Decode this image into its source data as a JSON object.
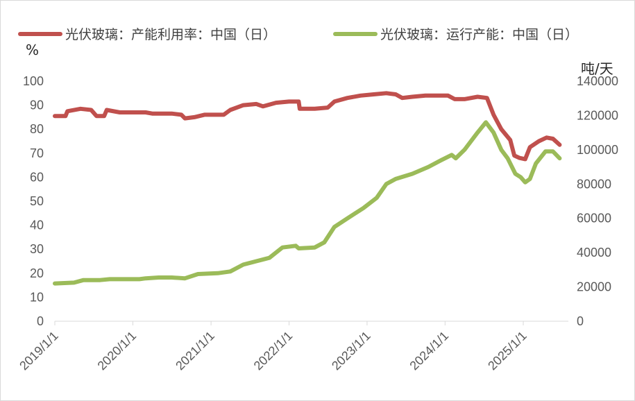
{
  "chart_data": {
    "type": "line",
    "x_ticks": [
      "2019/1/1",
      "2020/1/1",
      "2021/1/1",
      "2022/1/1",
      "2023/1/1",
      "2024/1/1",
      "2025/1/1"
    ],
    "y_left": {
      "unit_label": "%",
      "range": [
        0,
        100
      ],
      "ticks": [
        0,
        10,
        20,
        30,
        40,
        50,
        60,
        70,
        80,
        90,
        100
      ]
    },
    "y_right": {
      "unit_label": "吨/天",
      "range": [
        0,
        140000
      ],
      "ticks": [
        0,
        20000,
        40000,
        60000,
        80000,
        100000,
        120000,
        140000
      ]
    },
    "legend_position": "top",
    "grid": false,
    "series": [
      {
        "name": "光伏玻璃：产能利用率：中国（日）",
        "color": "#c0504d",
        "axis": "left",
        "points": [
          [
            "2019-01-01",
            85.5
          ],
          [
            "2019-02-20",
            85.5
          ],
          [
            "2019-03-01",
            87.5
          ],
          [
            "2019-05-01",
            88.5
          ],
          [
            "2019-06-20",
            88
          ],
          [
            "2019-07-15",
            85.5
          ],
          [
            "2019-08-20",
            85.5
          ],
          [
            "2019-09-01",
            88
          ],
          [
            "2019-11-01",
            87
          ],
          [
            "2020-03-01",
            87
          ],
          [
            "2020-04-01",
            86.5
          ],
          [
            "2020-07-01",
            86.5
          ],
          [
            "2020-08-15",
            86
          ],
          [
            "2020-09-01",
            84.5
          ],
          [
            "2020-10-15",
            85
          ],
          [
            "2020-12-01",
            86
          ],
          [
            "2021-03-01",
            86
          ],
          [
            "2021-04-01",
            88
          ],
          [
            "2021-06-01",
            90
          ],
          [
            "2021-08-01",
            90.5
          ],
          [
            "2021-09-01",
            89.5
          ],
          [
            "2021-11-01",
            91
          ],
          [
            "2022-01-01",
            91.5
          ],
          [
            "2022-02-15",
            91.5
          ],
          [
            "2022-02-20",
            88.5
          ],
          [
            "2022-05-01",
            88.5
          ],
          [
            "2022-07-01",
            89
          ],
          [
            "2022-08-01",
            91.5
          ],
          [
            "2022-10-01",
            93
          ],
          [
            "2022-12-01",
            94
          ],
          [
            "2023-02-01",
            94.5
          ],
          [
            "2023-04-01",
            95
          ],
          [
            "2023-05-15",
            94.5
          ],
          [
            "2023-06-15",
            93
          ],
          [
            "2023-08-01",
            93.5
          ],
          [
            "2023-10-01",
            94
          ],
          [
            "2024-01-15",
            94
          ],
          [
            "2024-02-15",
            92.5
          ],
          [
            "2024-04-01",
            92.5
          ],
          [
            "2024-06-01",
            93.5
          ],
          [
            "2024-07-15",
            93
          ],
          [
            "2024-08-15",
            86
          ],
          [
            "2024-09-20",
            80
          ],
          [
            "2024-11-01",
            75.5
          ],
          [
            "2024-11-20",
            69
          ],
          [
            "2024-12-15",
            68
          ],
          [
            "2025-01-10",
            67.5
          ],
          [
            "2025-02-01",
            72.5
          ],
          [
            "2025-03-15",
            75
          ],
          [
            "2025-04-20",
            76.5
          ],
          [
            "2025-05-20",
            76
          ],
          [
            "2025-06-20",
            73.5
          ]
        ]
      },
      {
        "name": "光伏玻璃：运行产能：中国（日）",
        "color": "#9bbb59",
        "axis": "right",
        "points": [
          [
            "2019-01-01",
            22000
          ],
          [
            "2019-04-01",
            22500
          ],
          [
            "2019-05-15",
            24000
          ],
          [
            "2019-08-01",
            24000
          ],
          [
            "2019-09-15",
            24500
          ],
          [
            "2020-02-01",
            24500
          ],
          [
            "2020-03-01",
            25000
          ],
          [
            "2020-05-01",
            25500
          ],
          [
            "2020-07-01",
            25500
          ],
          [
            "2020-09-01",
            25000
          ],
          [
            "2020-11-01",
            27500
          ],
          [
            "2021-02-01",
            28000
          ],
          [
            "2021-04-01",
            29000
          ],
          [
            "2021-06-01",
            33000
          ],
          [
            "2021-08-01",
            35000
          ],
          [
            "2021-10-01",
            37000
          ],
          [
            "2021-12-01",
            43000
          ],
          [
            "2022-02-01",
            44000
          ],
          [
            "2022-02-15",
            42500
          ],
          [
            "2022-05-01",
            43000
          ],
          [
            "2022-06-15",
            46000
          ],
          [
            "2022-08-01",
            55000
          ],
          [
            "2022-10-01",
            60000
          ],
          [
            "2022-12-15",
            66000
          ],
          [
            "2023-02-15",
            72000
          ],
          [
            "2023-04-01",
            80000
          ],
          [
            "2023-05-15",
            83000
          ],
          [
            "2023-08-01",
            86000
          ],
          [
            "2023-10-15",
            90000
          ],
          [
            "2023-12-15",
            94000
          ],
          [
            "2024-02-01",
            97000
          ],
          [
            "2024-02-20",
            95000
          ],
          [
            "2024-04-01",
            100000
          ],
          [
            "2024-06-01",
            110000
          ],
          [
            "2024-07-10",
            116000
          ],
          [
            "2024-08-15",
            110000
          ],
          [
            "2024-09-20",
            100000
          ],
          [
            "2024-10-20",
            95000
          ],
          [
            "2024-11-25",
            86000
          ],
          [
            "2024-12-20",
            84000
          ],
          [
            "2025-01-10",
            81000
          ],
          [
            "2025-02-01",
            83000
          ],
          [
            "2025-03-01",
            92000
          ],
          [
            "2025-04-15",
            99000
          ],
          [
            "2025-05-20",
            99000
          ],
          [
            "2025-06-20",
            95000
          ]
        ]
      }
    ]
  }
}
